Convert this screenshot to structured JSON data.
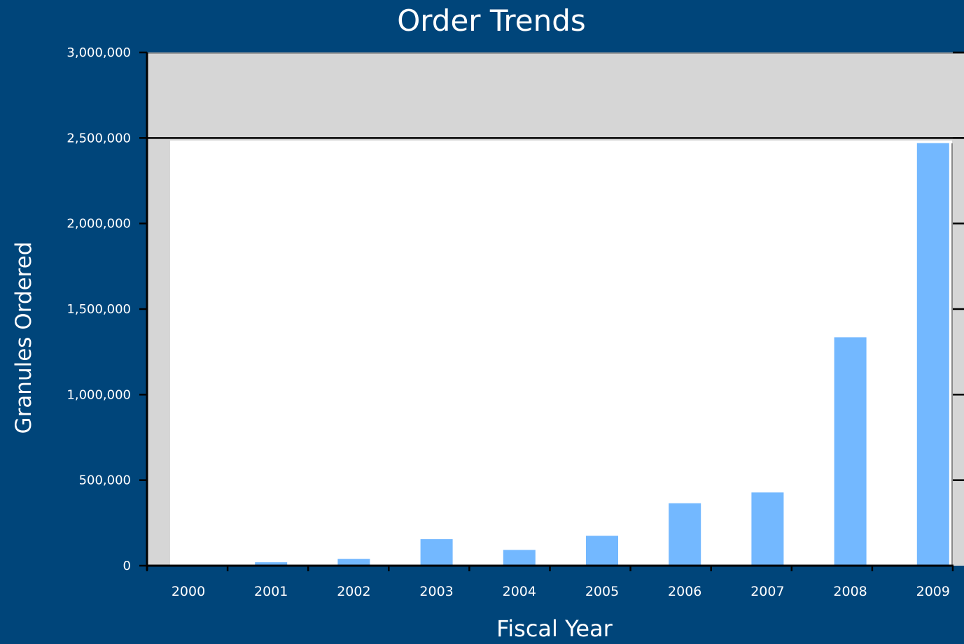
{
  "chart_data": {
    "type": "bar",
    "title": "Order Trends",
    "xlabel": "Fiscal Year",
    "ylabel": "Granules Ordered",
    "categories": [
      "2000",
      "2001",
      "2002",
      "2003",
      "2004",
      "2005",
      "2006",
      "2007",
      "2008",
      "2009"
    ],
    "values": [
      3000,
      20000,
      40000,
      155000,
      92000,
      175000,
      365000,
      428000,
      1335000,
      2470000
    ],
    "ylim": [
      0,
      3000000
    ],
    "yticks": [
      0,
      500000,
      1000000,
      1500000,
      2000000,
      2500000,
      3000000
    ],
    "ytick_labels": [
      "0",
      "500,000",
      "1,000,000",
      "1,500,000",
      "2,000,000",
      "2,500,000",
      "3,000,000"
    ],
    "grid": true,
    "legend": "none"
  },
  "colors": {
    "background": "#00457A",
    "plot_area": "#D6D6D6",
    "inner_panel": "#FFFFFF",
    "bar": "#73B8FF",
    "axis": "#000000",
    "text": "#FFFFFF"
  }
}
